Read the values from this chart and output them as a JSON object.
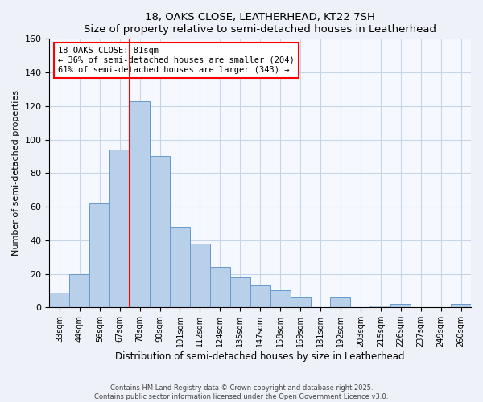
{
  "title": "18, OAKS CLOSE, LEATHERHEAD, KT22 7SH",
  "subtitle": "Size of property relative to semi-detached houses in Leatherhead",
  "xlabel": "Distribution of semi-detached houses by size in Leatherhead",
  "ylabel": "Number of semi-detached properties",
  "categories": [
    "33sqm",
    "44sqm",
    "56sqm",
    "67sqm",
    "78sqm",
    "90sqm",
    "101sqm",
    "112sqm",
    "124sqm",
    "135sqm",
    "147sqm",
    "158sqm",
    "169sqm",
    "181sqm",
    "192sqm",
    "203sqm",
    "215sqm",
    "226sqm",
    "237sqm",
    "249sqm",
    "260sqm"
  ],
  "values": [
    9,
    20,
    62,
    94,
    123,
    90,
    48,
    38,
    24,
    18,
    13,
    10,
    6,
    0,
    6,
    0,
    1,
    2,
    0,
    0,
    2
  ],
  "bar_color": "#b8d0ea",
  "bar_edge_color": "#6699cc",
  "vline_x_index": 4,
  "vline_color": "red",
  "annotation_title": "18 OAKS CLOSE: 81sqm",
  "annotation_line1": "← 36% of semi-detached houses are smaller (204)",
  "annotation_line2": "61% of semi-detached houses are larger (343) →",
  "ylim": [
    0,
    160
  ],
  "yticks": [
    0,
    20,
    40,
    60,
    80,
    100,
    120,
    140,
    160
  ],
  "footnote1": "Contains HM Land Registry data © Crown copyright and database right 2025.",
  "footnote2": "Contains public sector information licensed under the Open Government Licence v3.0.",
  "background_color": "#eef2f8",
  "plot_bg_color": "#f5f8ff",
  "grid_color": "#c8d4e8"
}
